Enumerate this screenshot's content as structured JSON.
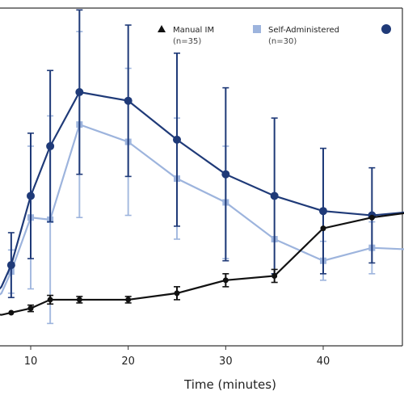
{
  "chart_data": {
    "type": "line",
    "title": "",
    "xlabel": "Time (minutes)",
    "ylabel": "",
    "xlim": [
      5,
      50
    ],
    "ylim": [
      0,
      100
    ],
    "x_ticks": [
      10,
      20,
      30,
      40
    ],
    "grid": false,
    "legend_position": "top-right",
    "series": [
      {
        "name": "Manual IM",
        "sub": "(n=35)",
        "marker": "triangle",
        "color": "#111111",
        "x": [
          5,
          7,
          8,
          10,
          12,
          15,
          20,
          25,
          30,
          35,
          40,
          45,
          50
        ],
        "y": [
          3,
          2,
          3,
          5,
          9,
          9,
          9,
          12,
          18,
          20,
          42,
          47,
          50
        ],
        "err": [
          0,
          0,
          0,
          1.5,
          2,
          1.5,
          1.5,
          3,
          3,
          3,
          0,
          0,
          0
        ]
      },
      {
        "name": "Self-Administered",
        "sub": "(n=30)",
        "marker": "square",
        "color": "#9db4dd",
        "x": [
          5,
          7,
          8,
          10,
          12,
          15,
          20,
          25,
          30,
          35,
          40,
          45,
          50
        ],
        "y": [
          5,
          12,
          22,
          47,
          46,
          90,
          82,
          65,
          54,
          37,
          27,
          33,
          32
        ],
        "err": [
          0,
          0,
          10,
          33,
          48,
          43,
          34,
          28,
          26,
          0,
          9,
          12,
          0
        ]
      },
      {
        "name": "",
        "sub": "",
        "marker": "circle",
        "color": "#1f3a78",
        "x": [
          5,
          7,
          8,
          10,
          12,
          15,
          20,
          25,
          30,
          35,
          40,
          45,
          50
        ],
        "y": [
          5,
          15,
          25,
          57,
          80,
          105,
          101,
          83,
          67,
          57,
          50,
          48,
          50
        ],
        "err": [
          0,
          0,
          15,
          29,
          35,
          38,
          35,
          40,
          40,
          36,
          29,
          22,
          0
        ]
      }
    ]
  }
}
